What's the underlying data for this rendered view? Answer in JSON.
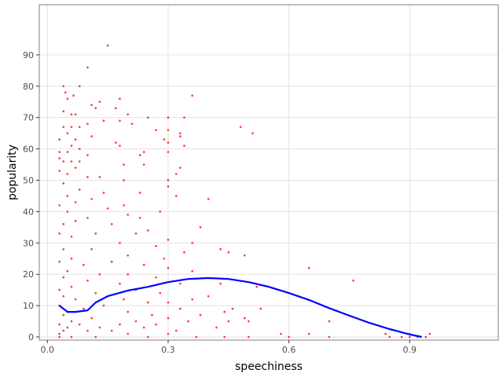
{
  "chart_data": {
    "type": "scatter",
    "xlabel": "speechiness",
    "ylabel": "popularity",
    "xlim": [
      -0.02,
      1.12
    ],
    "ylim": [
      -1,
      106
    ],
    "x_ticks": [
      0,
      0.3,
      0.6,
      0.9
    ],
    "x_tick_labels": [
      "0.0",
      "0.3",
      "0.6",
      "0.9"
    ],
    "y_ticks": [
      0,
      10,
      20,
      30,
      40,
      50,
      60,
      70,
      80,
      90
    ],
    "y_tick_labels": [
      "0",
      "10",
      "20",
      "30",
      "40",
      "50",
      "60",
      "70",
      "80",
      "90"
    ],
    "grid": true,
    "legend": "none",
    "series": [
      {
        "kind": "points",
        "color": "#ff0000",
        "points": [
          [
            0.15,
            93
          ],
          [
            0.1,
            86
          ],
          [
            0.04,
            80
          ],
          [
            0.08,
            80
          ],
          [
            0.045,
            78
          ],
          [
            0.065,
            77
          ],
          [
            0.36,
            77
          ],
          [
            0.05,
            76
          ],
          [
            0.18,
            76
          ],
          [
            0.13,
            75
          ],
          [
            0.11,
            74
          ],
          [
            0.12,
            73
          ],
          [
            0.17,
            73
          ],
          [
            0.04,
            72
          ],
          [
            0.06,
            71
          ],
          [
            0.07,
            71
          ],
          [
            0.2,
            71
          ],
          [
            0.25,
            70
          ],
          [
            0.3,
            70
          ],
          [
            0.34,
            70
          ],
          [
            0.14,
            69
          ],
          [
            0.18,
            69
          ],
          [
            0.1,
            68
          ],
          [
            0.21,
            68
          ],
          [
            0.04,
            67
          ],
          [
            0.06,
            67
          ],
          [
            0.08,
            67
          ],
          [
            0.3,
            66
          ],
          [
            0.48,
            67
          ],
          [
            0.27,
            66
          ],
          [
            0.33,
            65
          ],
          [
            0.51,
            65
          ],
          [
            0.05,
            65
          ],
          [
            0.33,
            64
          ],
          [
            0.03,
            63
          ],
          [
            0.07,
            63
          ],
          [
            0.11,
            64
          ],
          [
            0.29,
            63
          ],
          [
            0.3,
            62
          ],
          [
            0.17,
            62
          ],
          [
            0.06,
            61
          ],
          [
            0.34,
            61
          ],
          [
            0.18,
            61
          ],
          [
            0.08,
            60
          ],
          [
            0.3,
            59
          ],
          [
            0.24,
            59
          ],
          [
            0.03,
            59
          ],
          [
            0.05,
            59
          ],
          [
            0.23,
            58
          ],
          [
            0.1,
            58
          ],
          [
            0.03,
            57
          ],
          [
            0.04,
            56
          ],
          [
            0.06,
            56
          ],
          [
            0.08,
            56
          ],
          [
            0.19,
            55
          ],
          [
            0.24,
            55
          ],
          [
            0.33,
            54
          ],
          [
            0.07,
            54
          ],
          [
            0.03,
            53
          ],
          [
            0.05,
            52
          ],
          [
            0.32,
            52
          ],
          [
            0.1,
            51
          ],
          [
            0.13,
            51
          ],
          [
            0.19,
            50
          ],
          [
            0.3,
            50
          ],
          [
            0.04,
            49
          ],
          [
            0.3,
            48
          ],
          [
            0.08,
            47
          ],
          [
            0.14,
            46
          ],
          [
            0.23,
            46
          ],
          [
            0.32,
            45
          ],
          [
            0.05,
            45
          ],
          [
            0.11,
            44
          ],
          [
            0.4,
            44
          ],
          [
            0.07,
            43
          ],
          [
            0.19,
            42
          ],
          [
            0.03,
            42
          ],
          [
            0.15,
            41
          ],
          [
            0.28,
            40
          ],
          [
            0.05,
            40
          ],
          [
            0.2,
            39
          ],
          [
            0.1,
            38
          ],
          [
            0.23,
            38
          ],
          [
            0.38,
            35
          ],
          [
            0.07,
            37
          ],
          [
            0.04,
            36
          ],
          [
            0.16,
            36
          ],
          [
            0.25,
            34
          ],
          [
            0.12,
            33
          ],
          [
            0.03,
            33
          ],
          [
            0.22,
            33
          ],
          [
            0.06,
            32
          ],
          [
            0.3,
            31
          ],
          [
            0.36,
            30
          ],
          [
            0.18,
            30
          ],
          [
            0.27,
            29
          ],
          [
            0.04,
            28
          ],
          [
            0.43,
            28
          ],
          [
            0.11,
            28
          ],
          [
            0.45,
            27
          ],
          [
            0.34,
            27
          ],
          [
            0.49,
            26
          ],
          [
            0.2,
            26
          ],
          [
            0.06,
            25
          ],
          [
            0.29,
            25
          ],
          [
            0.03,
            24
          ],
          [
            0.16,
            24
          ],
          [
            0.24,
            23
          ],
          [
            0.09,
            23
          ],
          [
            0.65,
            22
          ],
          [
            0.3,
            22
          ],
          [
            0.36,
            21
          ],
          [
            0.05,
            21
          ],
          [
            0.2,
            20
          ],
          [
            0.13,
            20
          ],
          [
            0.04,
            19
          ],
          [
            0.27,
            19
          ],
          [
            0.76,
            18
          ],
          [
            0.1,
            18
          ],
          [
            0.43,
            17
          ],
          [
            0.18,
            17
          ],
          [
            0.33,
            17
          ],
          [
            0.52,
            16
          ],
          [
            0.06,
            16
          ],
          [
            0.22,
            15
          ],
          [
            0.03,
            15
          ],
          [
            0.28,
            14
          ],
          [
            0.12,
            14
          ],
          [
            0.4,
            13
          ],
          [
            0.04,
            13
          ],
          [
            0.36,
            12
          ],
          [
            0.19,
            12
          ],
          [
            0.07,
            12
          ],
          [
            0.25,
            11
          ],
          [
            0.3,
            11
          ],
          [
            0.53,
            9
          ],
          [
            0.46,
            9
          ],
          [
            0.03,
            10
          ],
          [
            0.14,
            10
          ],
          [
            0.09,
            9
          ],
          [
            0.33,
            9
          ],
          [
            0.44,
            8
          ],
          [
            0.2,
            8
          ],
          [
            0.05,
            8
          ],
          [
            0.26,
            7
          ],
          [
            0.38,
            7
          ],
          [
            0.04,
            7
          ],
          [
            0.11,
            6
          ],
          [
            0.49,
            6
          ],
          [
            0.3,
            6
          ],
          [
            0.7,
            5
          ],
          [
            0.45,
            5
          ],
          [
            0.5,
            5
          ],
          [
            0.06,
            5
          ],
          [
            0.22,
            5
          ],
          [
            0.35,
            5
          ],
          [
            0.03,
            4
          ],
          [
            0.18,
            4
          ],
          [
            0.27,
            4
          ],
          [
            0.08,
            4
          ],
          [
            0.13,
            3
          ],
          [
            0.42,
            3
          ],
          [
            0.05,
            3
          ],
          [
            0.24,
            3
          ],
          [
            0.04,
            2
          ],
          [
            0.32,
            2
          ],
          [
            0.1,
            2
          ],
          [
            0.16,
            2
          ],
          [
            0.58,
            1
          ],
          [
            0.65,
            1
          ],
          [
            0.84,
            1
          ],
          [
            0.9,
            1
          ],
          [
            0.95,
            1
          ],
          [
            0.03,
            1
          ],
          [
            0.2,
            1
          ],
          [
            0.3,
            1
          ],
          [
            0.44,
            0
          ],
          [
            0.6,
            0
          ],
          [
            0.7,
            0
          ],
          [
            0.85,
            0
          ],
          [
            0.92,
            0
          ],
          [
            0.94,
            0
          ],
          [
            0.03,
            0
          ],
          [
            0.06,
            0
          ],
          [
            0.12,
            0
          ],
          [
            0.25,
            0
          ],
          [
            0.37,
            0
          ],
          [
            0.5,
            0
          ],
          [
            0.88,
            0
          ],
          [
            0.9,
            0
          ]
        ]
      },
      {
        "kind": "smooth",
        "color": "#0000ff",
        "points": [
          [
            0.03,
            10
          ],
          [
            0.05,
            8
          ],
          [
            0.07,
            8
          ],
          [
            0.1,
            8.5
          ],
          [
            0.12,
            11
          ],
          [
            0.15,
            13
          ],
          [
            0.2,
            14.8
          ],
          [
            0.25,
            16
          ],
          [
            0.3,
            17.5
          ],
          [
            0.35,
            18.5
          ],
          [
            0.4,
            18.8
          ],
          [
            0.45,
            18.5
          ],
          [
            0.5,
            17.5
          ],
          [
            0.55,
            16
          ],
          [
            0.6,
            14
          ],
          [
            0.65,
            11.8
          ],
          [
            0.7,
            9.2
          ],
          [
            0.75,
            6.8
          ],
          [
            0.8,
            4.5
          ],
          [
            0.85,
            2.5
          ],
          [
            0.9,
            0.8
          ],
          [
            0.93,
            0
          ]
        ]
      }
    ]
  }
}
